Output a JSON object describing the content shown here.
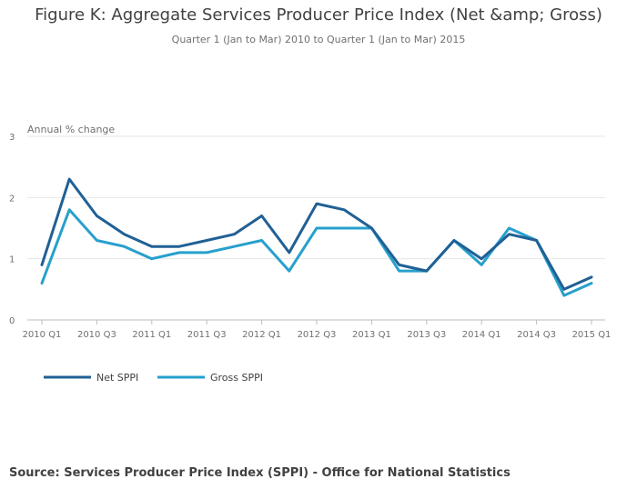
{
  "chart_data": {
    "type": "line",
    "title": "Figure K: Aggregate Services Producer Price Index (Net &amp; Gross)",
    "subtitle": "Quarter 1 (Jan to Mar) 2010 to Quarter 1 (Jan to Mar) 2015",
    "ylabel": "Annual % change",
    "xlabel": "",
    "ylim": [
      0,
      3
    ],
    "yticks": [
      "0",
      "1",
      "2",
      "3"
    ],
    "x": [
      "2010 Q1",
      "2010 Q2",
      "2010 Q3",
      "2010 Q4",
      "2011 Q1",
      "2011 Q2",
      "2011 Q3",
      "2011 Q4",
      "2012 Q1",
      "2012 Q2",
      "2012 Q3",
      "2012 Q4",
      "2013 Q1",
      "2013 Q2",
      "2013 Q3",
      "2013 Q4",
      "2014 Q1",
      "2014 Q2",
      "2014 Q3",
      "2014 Q4",
      "2015 Q1"
    ],
    "xtick_labels": [
      "2010 Q1",
      "2010 Q3",
      "2011 Q1",
      "2011 Q3",
      "2012 Q1",
      "2012 Q3",
      "2013 Q1",
      "2013 Q3",
      "2014 Q1",
      "2014 Q3",
      "2015 Q1"
    ],
    "series": [
      {
        "name": "Net SPPI",
        "color": "#206095",
        "values": [
          0.9,
          2.3,
          1.7,
          1.4,
          1.2,
          1.2,
          1.3,
          1.4,
          1.7,
          1.1,
          1.9,
          1.8,
          1.5,
          0.9,
          0.8,
          1.3,
          1.0,
          1.4,
          1.3,
          0.5,
          0.7
        ]
      },
      {
        "name": "Gross SPPI",
        "color": "#27a0cc",
        "values": [
          0.6,
          1.8,
          1.3,
          1.2,
          1.0,
          1.1,
          1.1,
          1.2,
          1.3,
          0.8,
          1.5,
          1.5,
          1.5,
          0.8,
          0.8,
          1.3,
          0.9,
          1.5,
          1.3,
          0.4,
          0.6
        ]
      }
    ],
    "legend": "bottom-left",
    "grid": true
  },
  "source": "Source: Services Producer Price Index (SPPI) - Office for National Statistics"
}
